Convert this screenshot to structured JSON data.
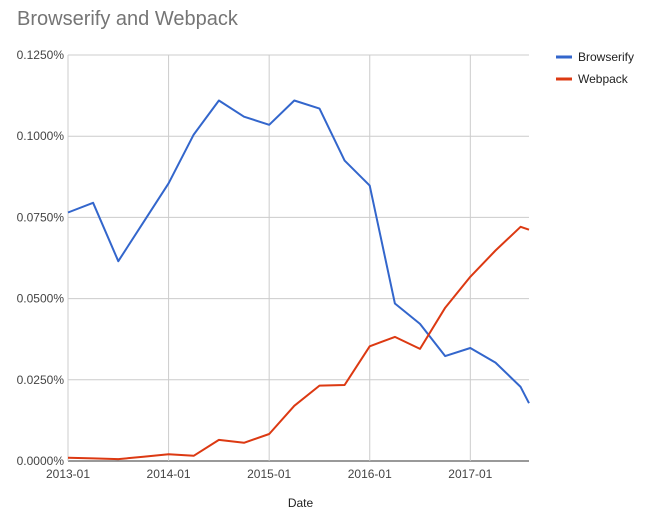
{
  "chart_data": {
    "type": "line",
    "title": "Browserify and Webpack",
    "xlabel": "Date",
    "ylabel": "",
    "x_ticks": [
      "2013-01",
      "2014-01",
      "2015-01",
      "2016-01",
      "2017-01"
    ],
    "y_ticks": [
      "0.0000%",
      "0.0250%",
      "0.0500%",
      "0.0750%",
      "0.1000%",
      "0.1250%"
    ],
    "xlim": [
      "2013-01",
      "2017-08"
    ],
    "ylim": [
      0,
      0.125
    ],
    "grid": true,
    "legend": "right",
    "x": [
      "2013-01",
      "2013-04",
      "2013-07",
      "2013-10",
      "2014-01",
      "2014-04",
      "2014-07",
      "2014-10",
      "2015-01",
      "2015-04",
      "2015-07",
      "2015-10",
      "2016-01",
      "2016-04",
      "2016-07",
      "2016-10",
      "2017-01",
      "2017-04",
      "2017-07",
      "2017-08"
    ],
    "series": [
      {
        "name": "Browserify",
        "color": "#3366cc",
        "values": [
          0.0765,
          0.0795,
          0.0615,
          0.0735,
          0.0855,
          0.1005,
          0.111,
          0.106,
          0.1035,
          0.111,
          0.1085,
          0.0925,
          0.0848,
          0.0485,
          0.0422,
          0.0323,
          0.0348,
          0.0303,
          0.0228,
          0.0178
        ]
      },
      {
        "name": "Webpack",
        "color": "#dc3912",
        "values": [
          0.001,
          0.0008,
          0.0006,
          0.0013,
          0.0021,
          0.0016,
          0.0065,
          0.0056,
          0.0083,
          0.017,
          0.0232,
          0.0234,
          0.0353,
          0.0382,
          0.0345,
          0.0472,
          0.0567,
          0.0648,
          0.0721,
          0.0712
        ]
      }
    ]
  }
}
